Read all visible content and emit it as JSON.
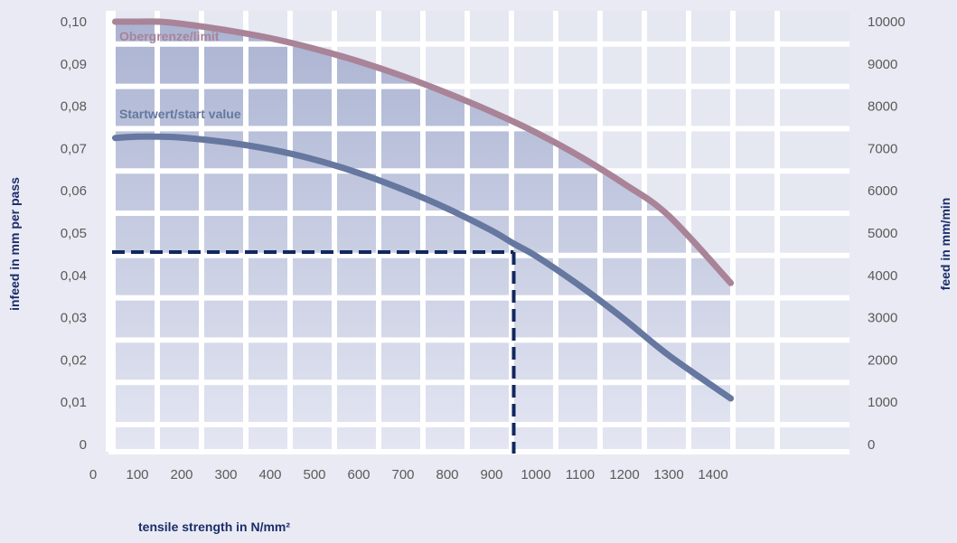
{
  "chart_data": {
    "type": "line",
    "xlabel": "tensile strength in N/mm²",
    "ylabel_left": "infeed in mm per pass",
    "ylabel_right": "feed in mm/min",
    "x_ticks": [
      "0",
      "100",
      "200",
      "300",
      "400",
      "500",
      "600",
      "700",
      "800",
      "900",
      "1000",
      "1100",
      "1200",
      "1300",
      "1400"
    ],
    "y_left_ticks": [
      "0",
      "0,01",
      "0,02",
      "0,03",
      "0,04",
      "0,05",
      "0,06",
      "0,07",
      "0,08",
      "0,09",
      "0,10"
    ],
    "y_right_ticks": [
      "0",
      "1000",
      "2000",
      "3000",
      "4000",
      "5000",
      "6000",
      "7000",
      "8000",
      "9000",
      "10000"
    ],
    "xlim": [
      0,
      1450
    ],
    "ylim_left": [
      0,
      0.1
    ],
    "ylim_right": [
      0,
      10000
    ],
    "grid": true,
    "series": [
      {
        "name": "Obergrenze/limit",
        "color": "#a98397",
        "x": [
          50,
          100,
          150,
          200,
          300,
          400,
          500,
          600,
          700,
          800,
          900,
          1000,
          1100,
          1200,
          1300,
          1440
        ],
        "y": [
          0.1,
          0.1,
          0.1,
          0.0995,
          0.098,
          0.0961,
          0.0936,
          0.0906,
          0.0871,
          0.0831,
          0.0787,
          0.0738,
          0.0681,
          0.0616,
          0.0541,
          0.0382
        ]
      },
      {
        "name": "Startwert/start value",
        "color": "#6677a0",
        "x": [
          50,
          100,
          150,
          200,
          300,
          400,
          500,
          600,
          700,
          800,
          900,
          950,
          1000,
          1100,
          1200,
          1300,
          1440
        ],
        "y": [
          0.0725,
          0.0728,
          0.0728,
          0.0726,
          0.0715,
          0.0698,
          0.0674,
          0.0642,
          0.0603,
          0.0558,
          0.0506,
          0.0475,
          0.0446,
          0.0375,
          0.0296,
          0.0211,
          0.0109
        ]
      }
    ],
    "annotation": {
      "type": "dashed-crosshair",
      "x": 950,
      "y": 0.0455,
      "color": "#12275e"
    }
  }
}
